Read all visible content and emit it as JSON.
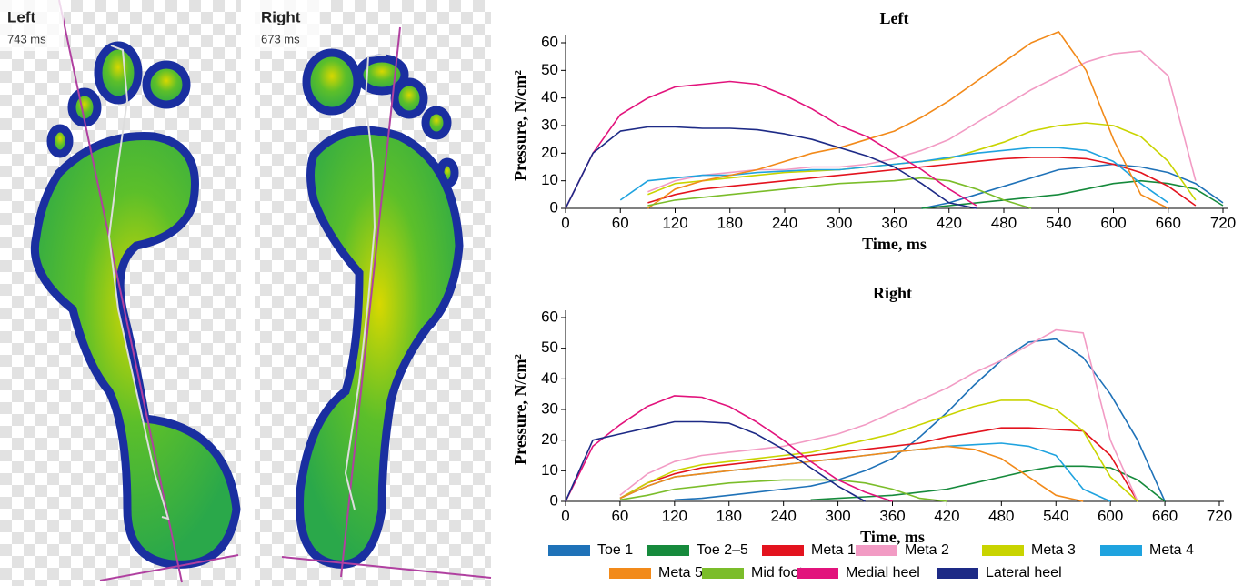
{
  "foot_maps": [
    {
      "title": "Left",
      "duration": "743 ms"
    },
    {
      "title": "Right",
      "duration": "673 ms"
    }
  ],
  "chart_data": [
    {
      "type": "line",
      "title": "Left",
      "x_label": "Time, ms",
      "y_label": "Pressure, N/cm²",
      "x": [
        0,
        30,
        60,
        90,
        120,
        150,
        180,
        210,
        240,
        270,
        300,
        330,
        360,
        390,
        420,
        450,
        480,
        510,
        540,
        570,
        600,
        630,
        660,
        690,
        720
      ],
      "xlim": [
        0,
        720
      ],
      "ylim": [
        0,
        60
      ],
      "xticks": [
        0,
        60,
        120,
        180,
        240,
        300,
        360,
        420,
        480,
        540,
        600,
        660,
        720
      ],
      "yticks": [
        0,
        10,
        20,
        30,
        40,
        50,
        60
      ],
      "series": [
        {
          "name": "Toe 1",
          "color": "#1f72b8",
          "values": [
            null,
            null,
            null,
            null,
            null,
            null,
            null,
            null,
            null,
            null,
            null,
            null,
            null,
            0,
            2,
            5,
            8,
            11,
            14,
            15,
            16,
            15,
            13,
            9,
            2
          ]
        },
        {
          "name": "Toe 2–5",
          "color": "#168a3c",
          "values": [
            null,
            null,
            null,
            null,
            null,
            null,
            null,
            null,
            null,
            null,
            null,
            null,
            null,
            0,
            1,
            2,
            3,
            4,
            5,
            7,
            9,
            10,
            9,
            7,
            1
          ]
        },
        {
          "name": "Meta 1",
          "color": "#e3131e",
          "values": [
            null,
            null,
            null,
            2,
            5,
            7,
            8,
            9,
            10,
            11,
            12,
            13,
            14,
            15,
            16,
            17,
            18,
            18.5,
            18.5,
            18,
            16,
            13,
            8,
            1,
            null
          ]
        },
        {
          "name": "Meta 2",
          "color": "#f29bc4",
          "values": [
            null,
            null,
            null,
            6,
            10,
            12,
            13,
            14,
            14,
            15,
            15,
            16,
            18,
            21,
            25,
            31,
            37,
            43,
            48,
            53,
            56,
            57,
            48,
            10,
            null
          ]
        },
        {
          "name": "Meta 3",
          "color": "#c9d400",
          "values": [
            null,
            null,
            null,
            5,
            9,
            10,
            11,
            12,
            13,
            13.5,
            14,
            15,
            16,
            17,
            18,
            21,
            24,
            28,
            30,
            31,
            30,
            26,
            17,
            3,
            null
          ]
        },
        {
          "name": "Meta 4",
          "color": "#1fa3df",
          "values": [
            null,
            null,
            3,
            10,
            11,
            12,
            12,
            13,
            13.5,
            14,
            14,
            15,
            16,
            17,
            18.5,
            20,
            21,
            22,
            22,
            21,
            17,
            9,
            2,
            null,
            null
          ]
        },
        {
          "name": "Meta 5",
          "color": "#f28a1a",
          "values": [
            null,
            null,
            null,
            0,
            7,
            10,
            12,
            14,
            17,
            20,
            22,
            25,
            28,
            33,
            39,
            46,
            53,
            60,
            64,
            50,
            25,
            5,
            0,
            null,
            null
          ]
        },
        {
          "name": "Mid foot",
          "color": "#7bbd2a",
          "values": [
            null,
            null,
            null,
            1,
            3,
            4,
            5,
            6,
            7,
            8,
            9,
            9.5,
            10,
            11,
            10,
            7,
            3,
            0,
            null,
            null,
            null,
            null,
            null,
            null,
            null
          ]
        },
        {
          "name": "Medial heel",
          "color": "#e2137c",
          "values": [
            0,
            20,
            34,
            40,
            44,
            45,
            46,
            45,
            41,
            36,
            30,
            26,
            20,
            14,
            7,
            1,
            null,
            null,
            null,
            null,
            null,
            null,
            null,
            null,
            null
          ]
        },
        {
          "name": "Lateral heel",
          "color": "#1d2a86",
          "values": [
            0,
            20,
            28,
            29.5,
            29.5,
            29,
            29,
            28.5,
            27,
            25,
            22,
            19,
            15,
            9,
            2,
            0,
            null,
            null,
            null,
            null,
            null,
            null,
            null,
            null,
            null
          ]
        }
      ]
    },
    {
      "type": "line",
      "title": "Right",
      "x_label": "Time, ms",
      "y_label": "Pressure, N/cm²",
      "x": [
        0,
        30,
        60,
        90,
        120,
        150,
        180,
        210,
        240,
        270,
        300,
        330,
        360,
        390,
        420,
        450,
        480,
        510,
        540,
        570,
        600,
        630,
        660,
        690,
        720
      ],
      "xlim": [
        0,
        720
      ],
      "ylim": [
        0,
        60
      ],
      "xticks": [
        0,
        60,
        120,
        180,
        240,
        300,
        360,
        420,
        480,
        540,
        600,
        660,
        720
      ],
      "yticks": [
        0,
        10,
        20,
        30,
        40,
        50,
        60
      ],
      "series": [
        {
          "color": "#1f72b8",
          "values": [
            null,
            null,
            null,
            null,
            0.5,
            1,
            2,
            3,
            4,
            5,
            7,
            10,
            14,
            21,
            29,
            38,
            46,
            52,
            53,
            47,
            35,
            20,
            0,
            null,
            null
          ]
        },
        {
          "color": "#168a3c",
          "values": [
            null,
            null,
            null,
            null,
            null,
            null,
            null,
            null,
            null,
            0.5,
            1,
            1.5,
            2,
            3,
            4,
            6,
            8,
            10,
            11.5,
            11.5,
            11,
            7,
            0,
            null,
            null
          ]
        },
        {
          "color": "#e3131e",
          "values": [
            null,
            null,
            1,
            6,
            9,
            11,
            12,
            13,
            14,
            15,
            16,
            17,
            18,
            19,
            21,
            22.5,
            24,
            24,
            23.5,
            23,
            15,
            0,
            null,
            null,
            null
          ]
        },
        {
          "color": "#f29bc4",
          "values": [
            null,
            null,
            2,
            9,
            13,
            15,
            16,
            17,
            18,
            20,
            22,
            25,
            29,
            33,
            37,
            42,
            46,
            51,
            56,
            55,
            20,
            0,
            null,
            null,
            null
          ]
        },
        {
          "color": "#c9d400",
          "values": [
            null,
            null,
            1,
            6,
            10,
            12,
            13,
            14,
            15,
            16,
            18,
            20,
            22,
            25,
            28,
            31,
            33,
            33,
            30,
            23,
            8,
            0,
            null,
            null,
            null
          ]
        },
        {
          "color": "#1fa3df",
          "values": [
            null,
            null,
            1,
            5,
            8,
            9,
            10,
            11,
            12,
            13,
            14,
            15,
            16,
            17,
            18,
            18.5,
            19,
            18,
            15,
            4,
            0,
            null,
            null,
            null,
            null
          ]
        },
        {
          "color": "#f28a1a",
          "values": [
            null,
            null,
            1,
            5,
            8,
            9,
            10,
            11,
            12,
            13,
            14,
            15,
            16,
            17,
            18,
            17,
            14,
            8,
            2,
            0,
            null,
            null,
            null,
            null,
            null
          ]
        },
        {
          "color": "#7bbd2a",
          "values": [
            null,
            null,
            0.5,
            2,
            4,
            5,
            6,
            6.5,
            7,
            7,
            7,
            6,
            4,
            1,
            0,
            null,
            null,
            null,
            null,
            null,
            null,
            null,
            null,
            null,
            null
          ]
        },
        {
          "color": "#e2137c",
          "values": [
            0,
            18,
            25,
            31,
            34.5,
            34,
            31,
            26,
            20,
            13,
            7,
            3,
            0,
            null,
            null,
            null,
            null,
            null,
            null,
            null,
            null,
            null,
            null,
            null,
            null
          ]
        },
        {
          "color": "#1d2a86",
          "values": [
            0,
            20,
            22,
            24,
            26,
            26,
            25.5,
            22,
            17,
            11,
            5,
            0,
            null,
            null,
            null,
            null,
            null,
            null,
            null,
            null,
            null,
            null,
            null,
            null,
            null
          ]
        }
      ]
    }
  ]
}
